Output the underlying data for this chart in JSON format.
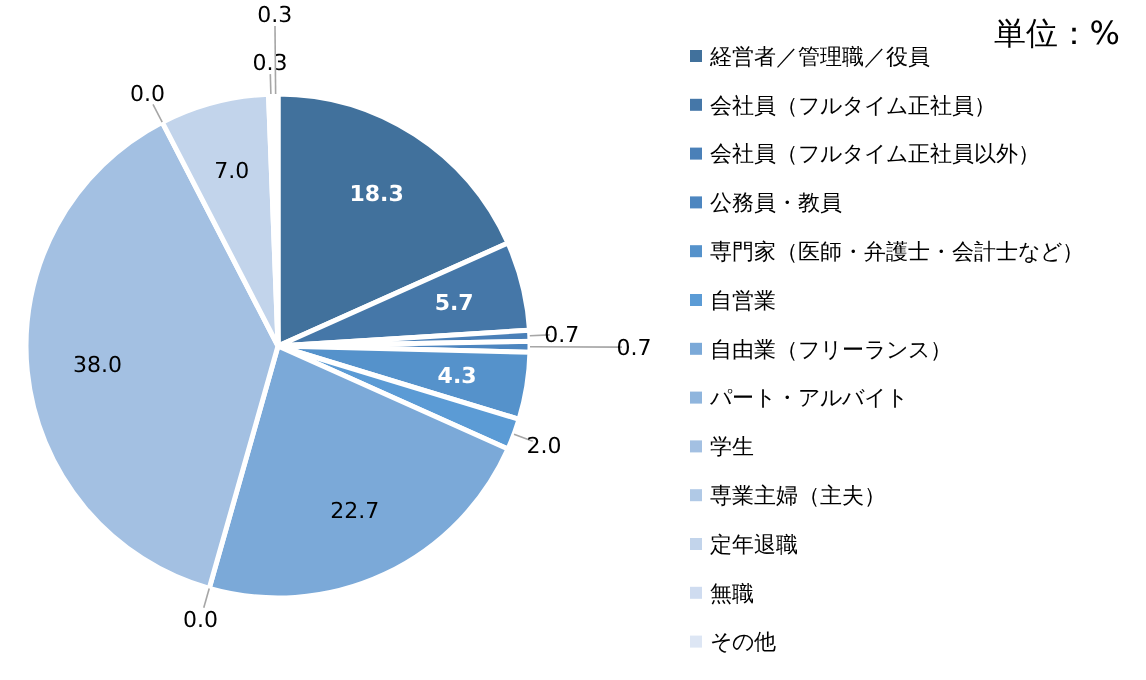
{
  "chart_data": {
    "type": "pie",
    "title": "単位：%",
    "categories": [
      "経営者／管理職／役員",
      "会社員（フルタイム正社員）",
      "会社員（フルタイム正社員以外）",
      "公務員・教員",
      "専門家（医師・弁護士・会計士など）",
      "自営業",
      "自由業（フリーランス）",
      "パート・アルバイト",
      "学生",
      "専業主婦（主夫）",
      "定年退職",
      "無職",
      "その他"
    ],
    "values": [
      18.3,
      5.7,
      0.7,
      0.7,
      4.3,
      2.0,
      22.7,
      0.0,
      38.0,
      0.0,
      7.0,
      0.3,
      0.3
    ],
    "value_labels": [
      "18.3",
      "5.7",
      "0.7",
      "0.7",
      "4.3",
      "2.0",
      "22.7",
      "0.0",
      "38.0",
      "0.0",
      "7.0",
      "0.3",
      "0.3"
    ],
    "colors": [
      "#41719c",
      "#4577a8",
      "#4a80b8",
      "#4d86c0",
      "#5592cb",
      "#5b9bd5",
      "#7ba9d8",
      "#8fb5dd",
      "#a3c0e2",
      "#b0c9e6",
      "#c2d4eb",
      "#cfdcf0",
      "#dde6f4"
    ],
    "legend": "right"
  }
}
